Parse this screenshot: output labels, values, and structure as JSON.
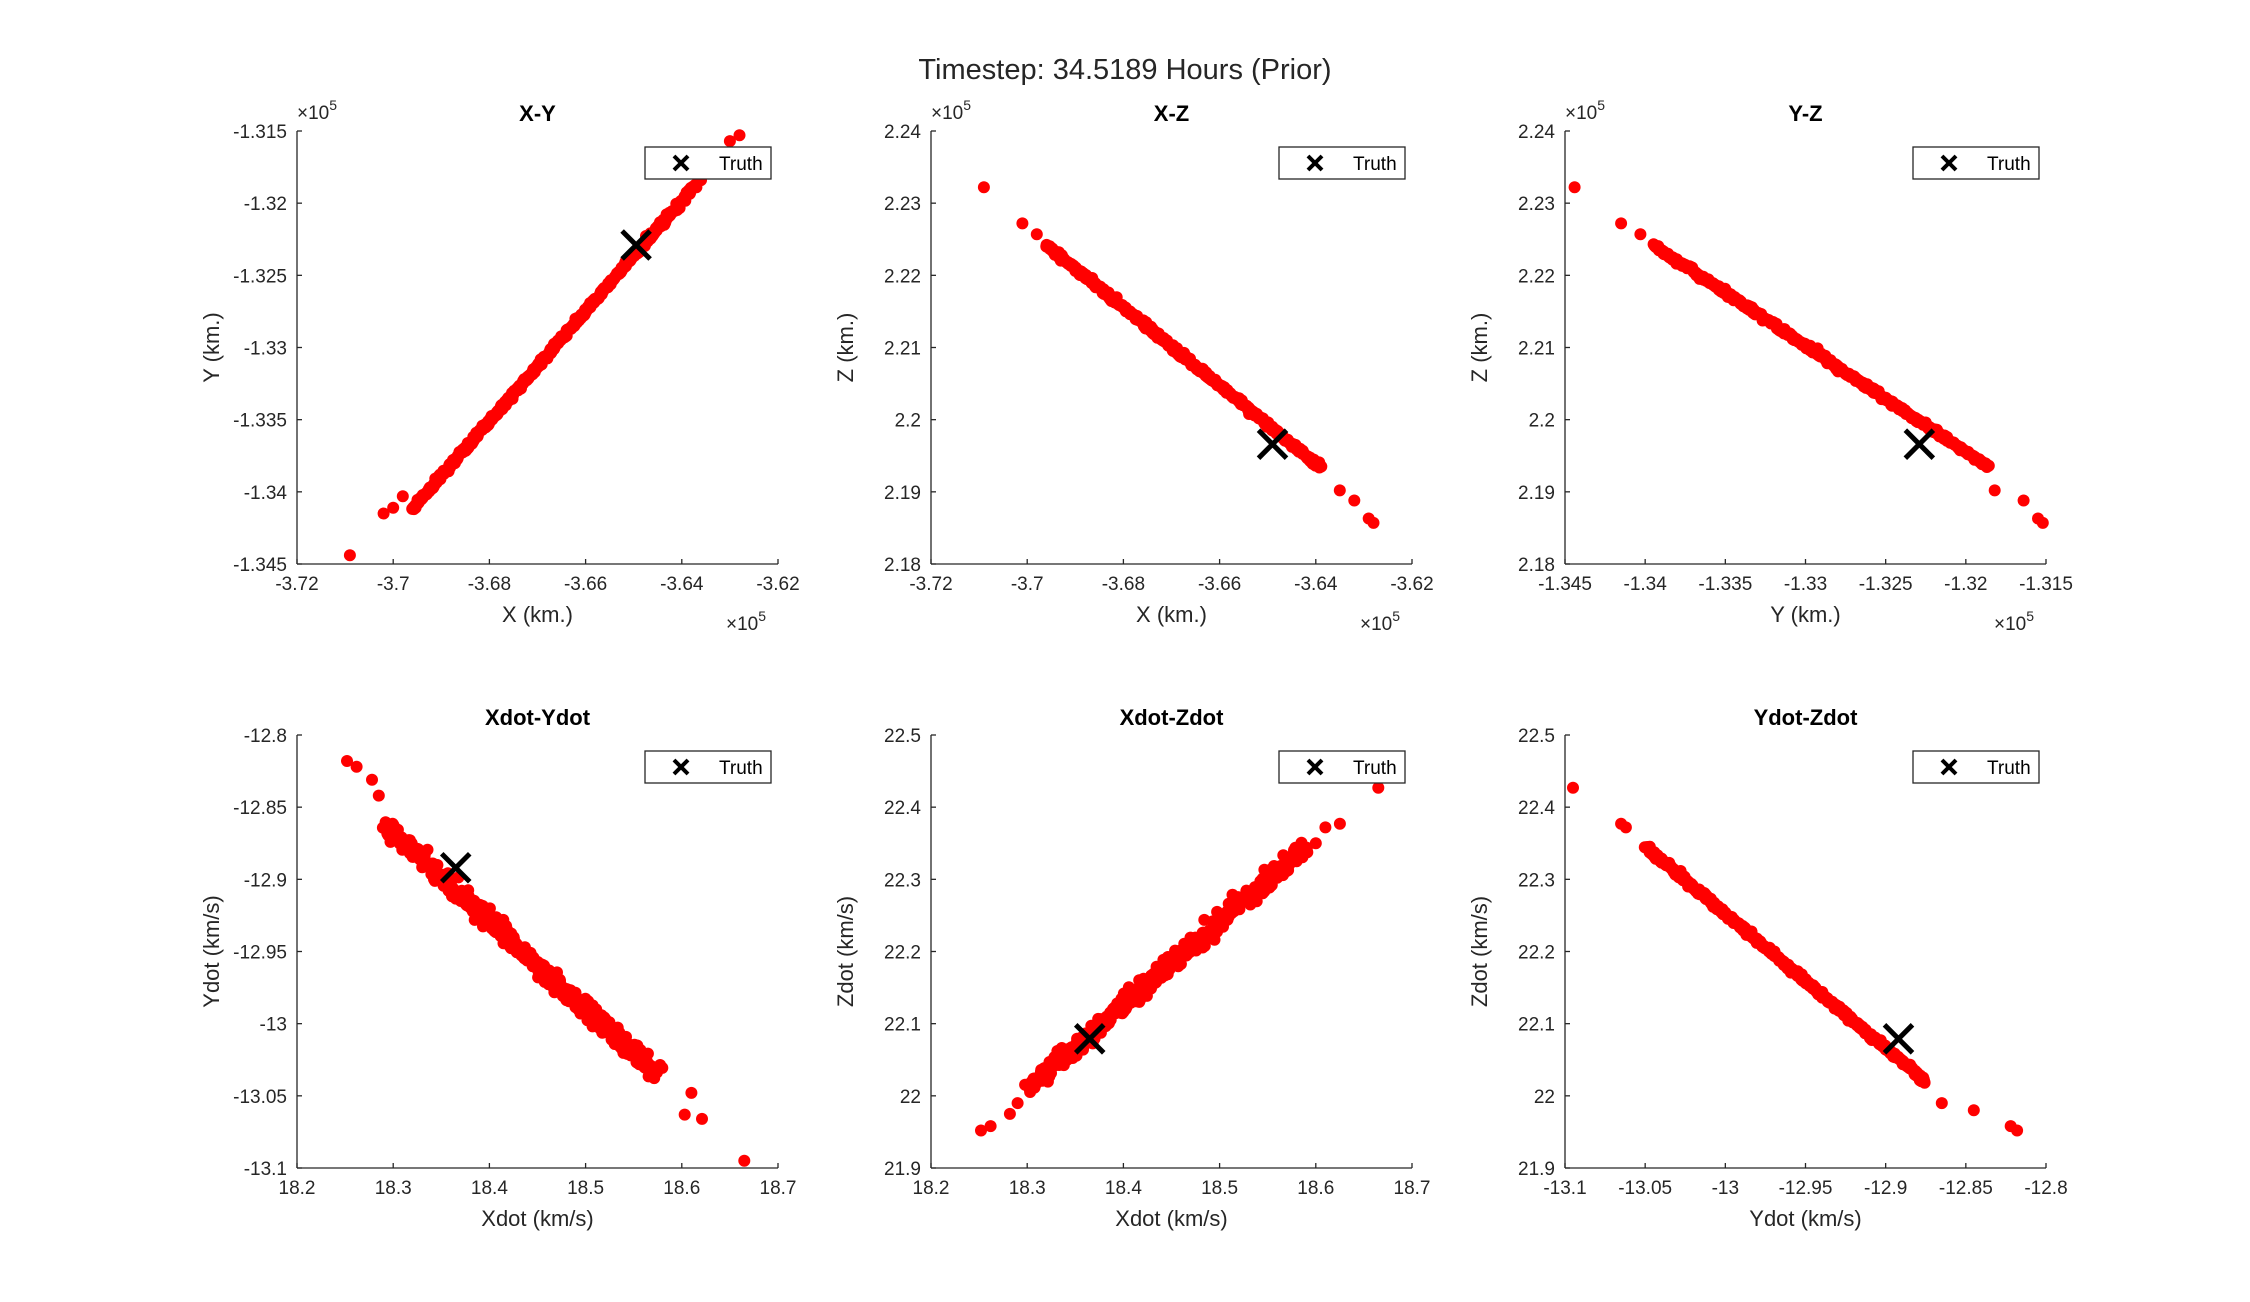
{
  "figure_title": "Timestep: 34.5189 Hours (Prior)",
  "colors": {
    "samples": "#ff0000",
    "truth": "#000000",
    "axis": "#262626"
  },
  "chart_data": [
    {
      "type": "scatter",
      "title": "X-Y",
      "xlabel": "X (km.)",
      "ylabel": "Y (km.)",
      "xlim": [
        -372000,
        -362000
      ],
      "ylim": [
        -134500,
        -131500
      ],
      "xticks": [
        -372000,
        -370000,
        -368000,
        -366000,
        -364000,
        -362000
      ],
      "xtick_labels": [
        "-3.72",
        "-3.7",
        "-3.68",
        "-3.66",
        "-3.64",
        "-3.62"
      ],
      "yticks": [
        -134500,
        -134000,
        -133500,
        -133000,
        -132500,
        -132000,
        -131500
      ],
      "ytick_labels": [
        "-1.345",
        "-1.34",
        "-1.335",
        "-1.33",
        "-1.325",
        "-1.32",
        "-1.315"
      ],
      "x_exponent": "×10",
      "x_exponent_power": "5",
      "y_exponent": "×10",
      "y_exponent_power": "5",
      "series": [
        {
          "name": "",
          "kind": "samples",
          "line_from": [
            -369600,
            -134120
          ],
          "line_to": [
            -363700,
            -131870
          ],
          "outliers": [
            [
              -370900,
              -134440
            ],
            [
              -370200,
              -134150
            ],
            [
              -370000,
              -134110
            ],
            [
              -369800,
              -134030
            ],
            [
              -363600,
              -131840
            ],
            [
              -363000,
              -131570
            ],
            [
              -362800,
              -131530
            ]
          ]
        },
        {
          "name": "Truth",
          "kind": "truth",
          "points": [
            [
              -364950,
              -132290
            ]
          ]
        }
      ],
      "legend": {
        "position": "top-right",
        "entries": [
          "Truth"
        ]
      }
    },
    {
      "type": "scatter",
      "title": "X-Z",
      "xlabel": "X (km.)",
      "ylabel": "Z (km.)",
      "xlim": [
        -372000,
        -362000
      ],
      "ylim": [
        218000,
        224000
      ],
      "xticks": [
        -372000,
        -370000,
        -368000,
        -366000,
        -364000,
        -362000
      ],
      "xtick_labels": [
        "-3.72",
        "-3.7",
        "-3.68",
        "-3.66",
        "-3.64",
        "-3.62"
      ],
      "yticks": [
        218000,
        219000,
        220000,
        221000,
        222000,
        223000,
        224000
      ],
      "ytick_labels": [
        "2.18",
        "2.19",
        "2.2",
        "2.21",
        "2.22",
        "2.23",
        "2.24"
      ],
      "x_exponent": "×10",
      "x_exponent_power": "5",
      "y_exponent": "×10",
      "y_exponent_power": "5",
      "series": [
        {
          "name": "",
          "kind": "samples",
          "line_from": [
            -369600,
            222420
          ],
          "line_to": [
            -363900,
            219340
          ],
          "outliers": [
            [
              -370900,
              223220
            ],
            [
              -370100,
              222720
            ],
            [
              -369800,
              222570
            ],
            [
              -363500,
              219020
            ],
            [
              -363200,
              218880
            ],
            [
              -362900,
              218630
            ],
            [
              -362800,
              218570
            ]
          ]
        },
        {
          "name": "Truth",
          "kind": "truth",
          "points": [
            [
              -364900,
              219660
            ]
          ]
        }
      ],
      "legend": {
        "position": "top-right",
        "entries": [
          "Truth"
        ]
      }
    },
    {
      "type": "scatter",
      "title": "Y-Z",
      "xlabel": "Y (km.)",
      "ylabel": "Z (km.)",
      "xlim": [
        -134500,
        -131500
      ],
      "ylim": [
        218000,
        224000
      ],
      "xticks": [
        -134500,
        -134000,
        -133500,
        -133000,
        -132500,
        -132000,
        -131500
      ],
      "xtick_labels": [
        "-1.345",
        "-1.34",
        "-1.335",
        "-1.33",
        "-1.325",
        "-1.32",
        "-1.315"
      ],
      "yticks": [
        218000,
        219000,
        220000,
        221000,
        222000,
        223000,
        224000
      ],
      "ytick_labels": [
        "2.18",
        "2.19",
        "2.2",
        "2.21",
        "2.22",
        "2.23",
        "2.24"
      ],
      "x_exponent": "×10",
      "x_exponent_power": "5",
      "y_exponent": "×10",
      "y_exponent_power": "5",
      "series": [
        {
          "name": "",
          "kind": "samples",
          "line_from": [
            -133950,
            222420
          ],
          "line_to": [
            -131860,
            219350
          ],
          "outliers": [
            [
              -134440,
              223220
            ],
            [
              -134150,
              222720
            ],
            [
              -134030,
              222570
            ],
            [
              -131820,
              219020
            ],
            [
              -131640,
              218880
            ],
            [
              -131550,
              218630
            ],
            [
              -131520,
              218570
            ]
          ]
        },
        {
          "name": "Truth",
          "kind": "truth",
          "points": [
            [
              -132290,
              219660
            ]
          ]
        }
      ],
      "legend": {
        "position": "top-right",
        "entries": [
          "Truth"
        ]
      }
    },
    {
      "type": "scatter",
      "title": "Xdot-Ydot",
      "xlabel": "Xdot (km/s)",
      "ylabel": "Ydot (km/s)",
      "xlim": [
        18.2,
        18.7
      ],
      "ylim": [
        -13.1,
        -12.8
      ],
      "xticks": [
        18.2,
        18.3,
        18.4,
        18.5,
        18.6,
        18.7
      ],
      "xtick_labels": [
        "18.2",
        "18.3",
        "18.4",
        "18.5",
        "18.6",
        "18.7"
      ],
      "yticks": [
        -13.1,
        -13.05,
        -13.0,
        -12.95,
        -12.9,
        -12.85,
        -12.8
      ],
      "ytick_labels": [
        "-13.1",
        "-13.05",
        "-13",
        "-12.95",
        "-12.9",
        "-12.85",
        "-12.8"
      ],
      "series": [
        {
          "name": "",
          "kind": "samples",
          "line_from": [
            18.29,
            -12.862
          ],
          "line_to": [
            18.575,
            -13.035
          ],
          "band": 7,
          "outliers": [
            [
              18.252,
              -12.818
            ],
            [
              18.262,
              -12.822
            ],
            [
              18.278,
              -12.831
            ],
            [
              18.285,
              -12.842
            ],
            [
              18.61,
              -13.048
            ],
            [
              18.603,
              -13.063
            ],
            [
              18.621,
              -13.066
            ],
            [
              18.665,
              -13.095
            ]
          ]
        },
        {
          "name": "Truth",
          "kind": "truth",
          "points": [
            [
              18.365,
              -12.892
            ]
          ]
        }
      ],
      "legend": {
        "position": "top-right",
        "entries": [
          "Truth"
        ]
      }
    },
    {
      "type": "scatter",
      "title": "Xdot-Zdot",
      "xlabel": "Xdot (km/s)",
      "ylabel": "Zdot (km/s)",
      "xlim": [
        18.2,
        18.7
      ],
      "ylim": [
        21.9,
        22.5
      ],
      "xticks": [
        18.2,
        18.3,
        18.4,
        18.5,
        18.6,
        18.7
      ],
      "xtick_labels": [
        "18.2",
        "18.3",
        "18.4",
        "18.5",
        "18.6",
        "18.7"
      ],
      "yticks": [
        21.9,
        22.0,
        22.1,
        22.2,
        22.3,
        22.4,
        22.5
      ],
      "ytick_labels": [
        "21.9",
        "22",
        "22.1",
        "22.2",
        "22.3",
        "22.4",
        "22.5"
      ],
      "series": [
        {
          "name": "",
          "kind": "samples",
          "line_from": [
            18.3,
            22.01
          ],
          "line_to": [
            18.59,
            22.345
          ],
          "band": 7,
          "outliers": [
            [
              18.252,
              21.952
            ],
            [
              18.262,
              21.958
            ],
            [
              18.282,
              21.975
            ],
            [
              18.29,
              21.99
            ],
            [
              18.6,
              22.35
            ],
            [
              18.61,
              22.372
            ],
            [
              18.625,
              22.377
            ],
            [
              18.665,
              22.427
            ]
          ]
        },
        {
          "name": "Truth",
          "kind": "truth",
          "points": [
            [
              18.365,
              22.079
            ]
          ]
        }
      ],
      "legend": {
        "position": "top-right",
        "entries": [
          "Truth"
        ]
      }
    },
    {
      "type": "scatter",
      "title": "Ydot-Zdot",
      "xlabel": "Ydot (km/s)",
      "ylabel": "Zdot (km/s)",
      "xlim": [
        -13.1,
        -12.8
      ],
      "ylim": [
        21.9,
        22.5
      ],
      "xticks": [
        -13.1,
        -13.05,
        -13.0,
        -12.95,
        -12.9,
        -12.85,
        -12.8
      ],
      "xtick_labels": [
        "-13.1",
        "-13.05",
        "-13",
        "-12.95",
        "-12.9",
        "-12.85",
        "-12.8"
      ],
      "yticks": [
        21.9,
        22.0,
        22.1,
        22.2,
        22.3,
        22.4,
        22.5
      ],
      "ytick_labels": [
        "21.9",
        "22",
        "22.1",
        "22.2",
        "22.3",
        "22.4",
        "22.5"
      ],
      "series": [
        {
          "name": "",
          "kind": "samples",
          "line_from": [
            -13.05,
            22.345
          ],
          "line_to": [
            -12.875,
            22.02
          ],
          "outliers": [
            [
              -13.095,
              22.427
            ],
            [
              -13.065,
              22.377
            ],
            [
              -13.062,
              22.372
            ],
            [
              -12.865,
              21.99
            ],
            [
              -12.845,
              21.98
            ],
            [
              -12.822,
              21.958
            ],
            [
              -12.818,
              21.952
            ]
          ]
        },
        {
          "name": "Truth",
          "kind": "truth",
          "points": [
            [
              -12.892,
              22.079
            ]
          ]
        }
      ],
      "legend": {
        "position": "top-right",
        "entries": [
          "Truth"
        ]
      }
    }
  ]
}
